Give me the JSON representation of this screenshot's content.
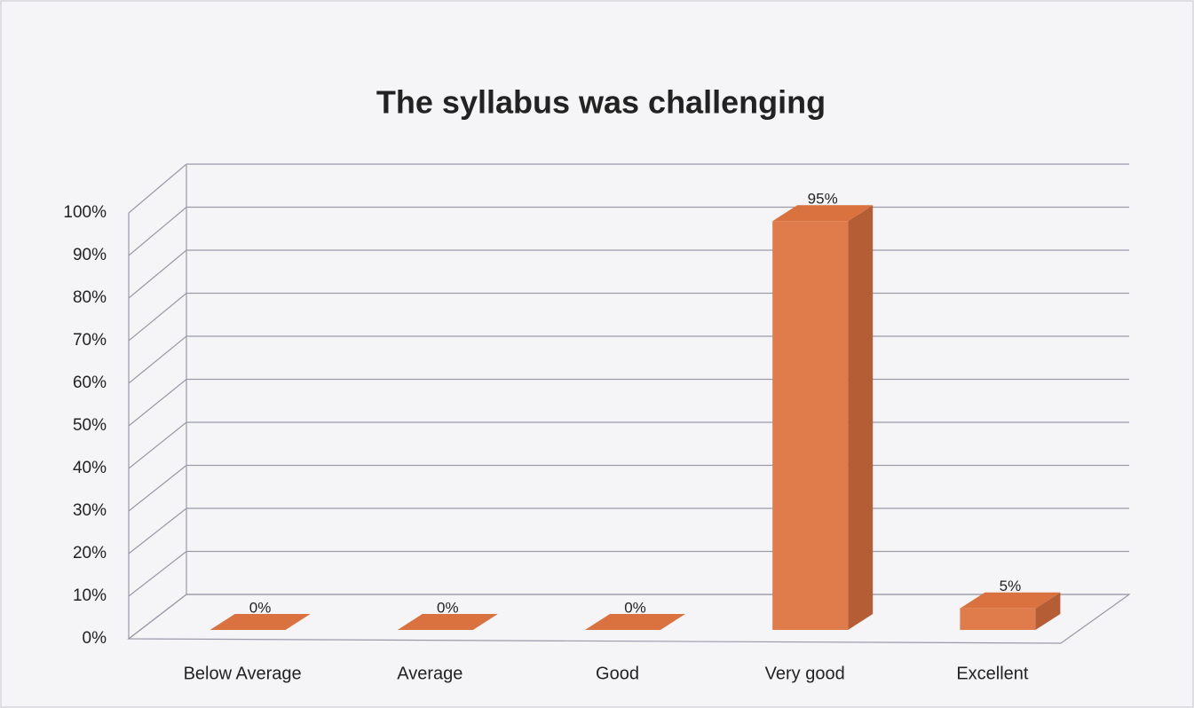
{
  "chart_data": {
    "type": "bar3d",
    "title": "The syllabus was challenging",
    "categories": [
      "Below Average",
      "Average",
      "Good",
      "Very good",
      "Excellent"
    ],
    "values": [
      0,
      0,
      0,
      95,
      5
    ],
    "value_labels": [
      "0%",
      "0%",
      "0%",
      "95%",
      "5%"
    ],
    "color": "#e07c4b",
    "ylim": [
      0,
      100
    ],
    "yticks": [
      {
        "value": 0,
        "label": "0%"
      },
      {
        "value": 10,
        "label": "10%"
      },
      {
        "value": 20,
        "label": "20%"
      },
      {
        "value": 30,
        "label": "30%"
      },
      {
        "value": 40,
        "label": "40%"
      },
      {
        "value": 50,
        "label": "50%"
      },
      {
        "value": 60,
        "label": "60%"
      },
      {
        "value": 70,
        "label": "70%"
      },
      {
        "value": 80,
        "label": "80%"
      },
      {
        "value": 90,
        "label": "90%"
      },
      {
        "value": 100,
        "label": "100%"
      }
    ],
    "grid": true
  }
}
